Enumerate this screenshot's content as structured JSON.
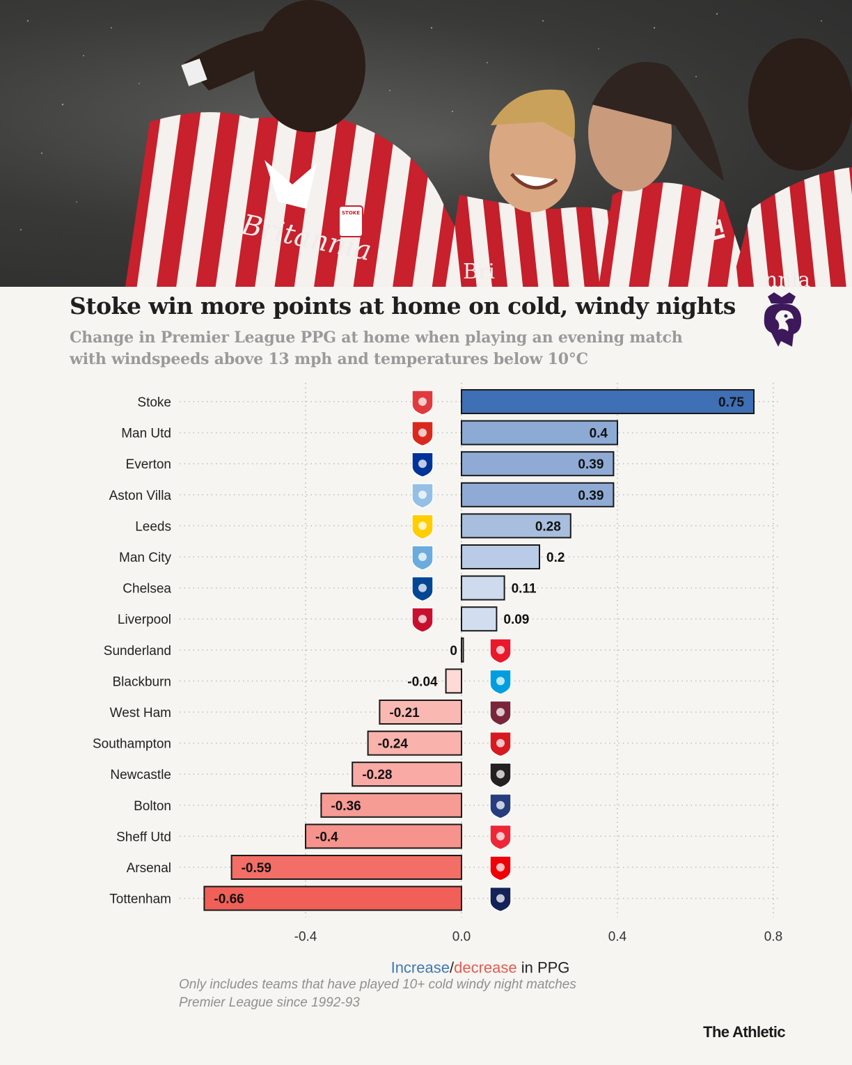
{
  "header": {
    "title": "Stoke win more points at home on cold, windy nights",
    "subtitle": "Change in Premier League PPG at home when playing an evening match with windspeeds above 13 mph and temperatures below 10°C",
    "logo_icon": "premier-league-lion-icon"
  },
  "photo": {
    "sponsor_text_1": "Britannia",
    "sponsor_text_2": "Bri",
    "sponsor_text_3": "nnia",
    "crest_text": "STOKE",
    "sleeve_text": "TI"
  },
  "chart_data": {
    "type": "bar",
    "orientation": "horizontal",
    "title": "Stoke win more points at home on cold, windy nights",
    "subtitle": "Change in Premier League PPG at home when playing an evening match with windspeeds above 13 mph and temperatures below 10°C",
    "categories": [
      "Stoke",
      "Man Utd",
      "Everton",
      "Aston Villa",
      "Leeds",
      "Man City",
      "Chelsea",
      "Liverpool",
      "Sunderland",
      "Blackburn",
      "West Ham",
      "Southampton",
      "Newcastle",
      "Bolton",
      "Sheff Utd",
      "Arsenal",
      "Tottenham"
    ],
    "values": [
      0.75,
      0.4,
      0.39,
      0.39,
      0.28,
      0.2,
      0.11,
      0.09,
      0,
      -0.04,
      -0.21,
      -0.24,
      -0.28,
      -0.36,
      -0.4,
      -0.59,
      -0.66
    ],
    "value_labels": [
      "0.75",
      "0.4",
      "0.39",
      "0.39",
      "0.28",
      "0.2",
      "0.11",
      "0.09",
      "0",
      "-0.04",
      "-0.21",
      "-0.24",
      "-0.28",
      "-0.36",
      "-0.4",
      "-0.59",
      "-0.66"
    ],
    "crest_colors": [
      "#e03a3e",
      "#da291c",
      "#003399",
      "#95bfe5",
      "#ffcd00",
      "#6cabdd",
      "#034694",
      "#c8102e",
      "#eb172b",
      "#009ee0",
      "#7a263a",
      "#d71920",
      "#241f20",
      "#263c7e",
      "#ee2737",
      "#ef0107",
      "#132257"
    ],
    "xlim": [
      -0.8,
      0.8
    ],
    "xticks": [
      -0.4,
      0.0,
      0.4,
      0.8
    ],
    "xtick_labels": [
      "-0.4",
      "0.0",
      "0.4",
      "0.8"
    ],
    "xlabel_increase": "Increase",
    "xlabel_sep": "/",
    "xlabel_decrease": "decrease",
    "xlabel_rest": " in PPG",
    "grid": true,
    "colors": {
      "positive_max": "#3f6fb4",
      "positive_min": "#e6edf8",
      "negative_min": "#ffe1de",
      "negative_max": "#f06058",
      "label_increase": "#3f78b5",
      "label_decrease": "#e45b53"
    }
  },
  "footnote": {
    "line1": "Only includes teams that have played 10+ cold windy night matches",
    "line2": "Premier League since 1992-93"
  },
  "brand": "The Athletic"
}
